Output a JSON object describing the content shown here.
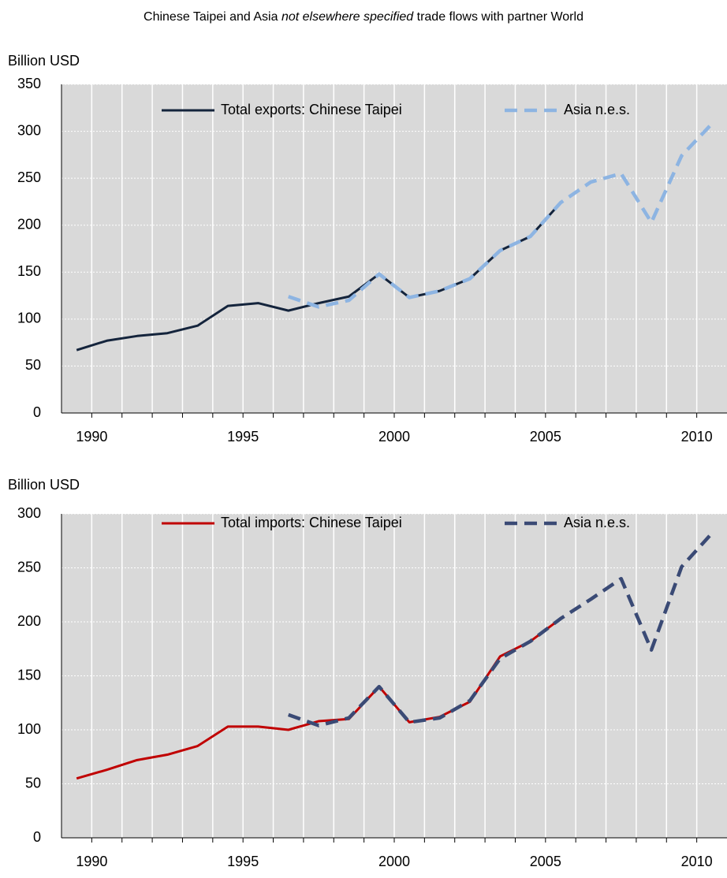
{
  "title": {
    "before": "Chinese Taipei and Asia ",
    "italic": "not elsewhere specified",
    "after": " trade flows with partner World"
  },
  "chart_data": [
    {
      "type": "line",
      "y_label": "Billion USD",
      "categories": [
        1990,
        null,
        null,
        null,
        null,
        1995,
        null,
        null,
        null,
        null,
        2000,
        null,
        null,
        null,
        null,
        2005,
        null,
        null,
        null,
        null,
        2010,
        null
      ],
      "series": [
        {
          "name": "Total exports: Chinese Taipei",
          "color": "#14243c",
          "dashed": false,
          "values": [
            67,
            77,
            82,
            85,
            93,
            114,
            117,
            109,
            117,
            124,
            148,
            123,
            130,
            143,
            173,
            188,
            224,
            null,
            null,
            null,
            null,
            null
          ]
        },
        {
          "name": "Asia n.e.s.",
          "color": "#8db4e2",
          "dashed": true,
          "values": [
            null,
            null,
            null,
            null,
            null,
            null,
            null,
            124,
            113,
            120,
            148,
            123,
            130,
            143,
            173,
            188,
            224,
            246,
            255,
            203,
            274,
            308
          ]
        }
      ],
      "ylim": [
        0,
        350
      ],
      "yticks": [
        0,
        50,
        100,
        150,
        200,
        250,
        300,
        350
      ],
      "grid": true,
      "legend": "top"
    },
    {
      "type": "line",
      "y_label": "Billion USD",
      "categories": [
        1990,
        null,
        null,
        null,
        null,
        1995,
        null,
        null,
        null,
        null,
        2000,
        null,
        null,
        null,
        null,
        2005,
        null,
        null,
        null,
        null,
        2010,
        null
      ],
      "series": [
        {
          "name": "Total imports: Chinese Taipei",
          "color": "#c00000",
          "dashed": false,
          "values": [
            55,
            63,
            72,
            77,
            85,
            103,
            103,
            100,
            108,
            110,
            140,
            107,
            112,
            126,
            168,
            182,
            203,
            null,
            null,
            null,
            null,
            null
          ]
        },
        {
          "name": "Asia n.e.s.",
          "color": "#3a4a75",
          "dashed": true,
          "values": [
            null,
            null,
            null,
            null,
            null,
            null,
            null,
            114,
            104,
            111,
            140,
            107,
            111,
            127,
            166,
            182,
            203,
            221,
            240,
            174,
            251,
            282
          ]
        }
      ],
      "ylim": [
        0,
        300
      ],
      "yticks": [
        0,
        50,
        100,
        150,
        200,
        250,
        300
      ],
      "grid": true,
      "legend": "top"
    }
  ]
}
